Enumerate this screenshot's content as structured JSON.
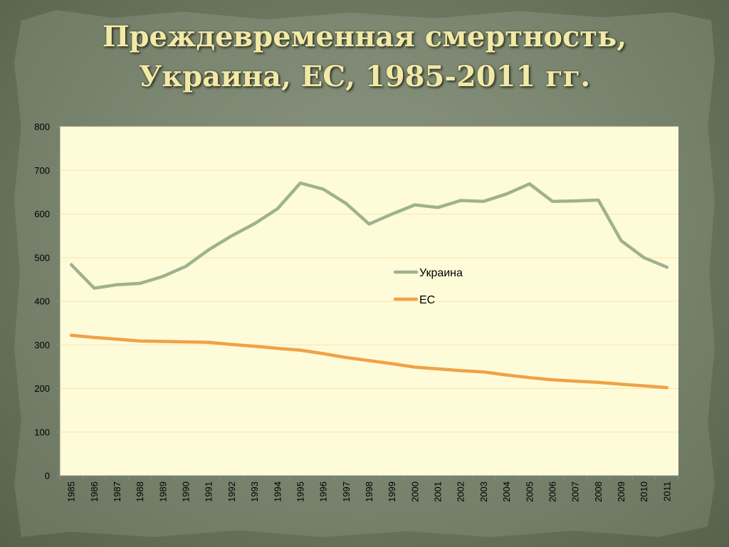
{
  "slide": {
    "title_line1": "Преждевременная смертность,",
    "title_line2": "Украина, ЕС, 1985-2011 гг."
  },
  "colors": {
    "ukraine": "#9fb28c",
    "eu": "#f0a247",
    "plot_bg": "#fefbd9",
    "grid": "#f3e7a9"
  },
  "chart_data": {
    "type": "line",
    "title": "Преждевременная смертность, Украина, ЕС, 1985-2011 гг.",
    "xlabel": "",
    "ylabel": "",
    "ylim": [
      0,
      800
    ],
    "yticks": [
      0,
      100,
      200,
      300,
      400,
      500,
      600,
      700,
      800
    ],
    "grid": true,
    "legend_position": "center-right",
    "categories": [
      "1985",
      "1986",
      "1987",
      "1988",
      "1989",
      "1990",
      "1991",
      "1992",
      "1993",
      "1994",
      "1995",
      "1996",
      "1997",
      "1998",
      "1999",
      "2000",
      "2001",
      "2002",
      "2003",
      "2004",
      "2005",
      "2006",
      "2007",
      "2008",
      "2009",
      "2010",
      "2011"
    ],
    "series": [
      {
        "name": "Украина",
        "color": "#9fb28c",
        "values": [
          484,
          430,
          438,
          441,
          457,
          480,
          518,
          550,
          578,
          612,
          671,
          657,
          624,
          577,
          600,
          621,
          615,
          631,
          629,
          646,
          669,
          629,
          630,
          632,
          539,
          500,
          478
        ]
      },
      {
        "name": "ЕС",
        "color": "#f0a247",
        "values": [
          322,
          317,
          313,
          309,
          308,
          307,
          306,
          301,
          297,
          292,
          288,
          280,
          271,
          264,
          257,
          249,
          245,
          241,
          238,
          231,
          225,
          220,
          217,
          214,
          210,
          206,
          202
        ]
      }
    ]
  }
}
